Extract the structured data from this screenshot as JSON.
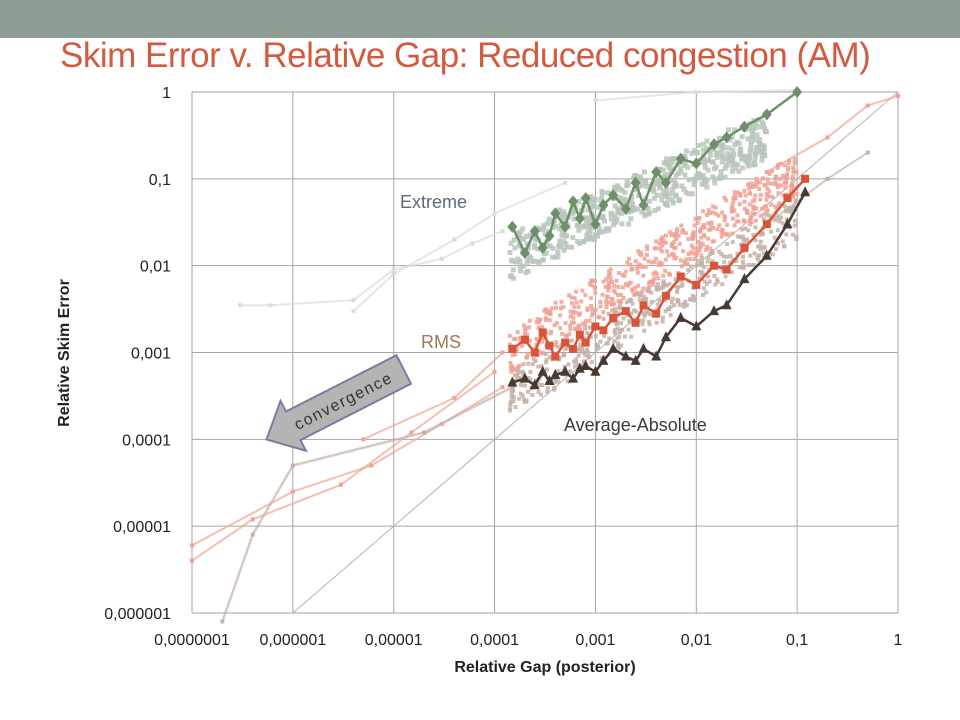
{
  "colors": {
    "top_band": "#8e9e95",
    "title": "#d35a3f",
    "grid": "#a6a6a6",
    "extreme_main": "#6f8f6a",
    "extreme_cloud": "#b9c6bb",
    "extreme_bg": "#dcdcdc",
    "rms_main": "#d9553a",
    "rms_cloud": "#f0a295",
    "avg_main": "#473a33",
    "avg_cloud": "#c4b2a8",
    "extreme_label": "#5b6b78",
    "rms_label": "#9b7a52",
    "avg_label": "#3b3b3b",
    "arrow_fill": "#b4b4b4",
    "arrow_stroke": "#7b7ba3"
  },
  "slide": {
    "title": "Skim Error v. Relative Gap: Reduced congestion (AM)"
  },
  "chart_data": {
    "type": "scatter",
    "title": "",
    "xlabel": "Relative Gap (posterior)",
    "ylabel": "Relative Skim Error",
    "x_scale": "log",
    "y_scale": "log",
    "xlim": [
      1e-07,
      1
    ],
    "ylim": [
      1e-06,
      1
    ],
    "x_ticks": [
      "0,0000001",
      "0,000001",
      "0,00001",
      "0,0001",
      "0,001",
      "0,01",
      "0,1",
      "1"
    ],
    "y_ticks": [
      "0,000001",
      "0,00001",
      "0,0001",
      "0,001",
      "0,01",
      "0,1",
      "1"
    ],
    "grid": true,
    "legend": "none",
    "reference_line": "y = x",
    "series": [
      {
        "name": "Extreme",
        "x": [
          0.00015,
          0.0002,
          0.00025,
          0.0003,
          0.00035,
          0.0004,
          0.0005,
          0.0006,
          0.0007,
          0.0008,
          0.001,
          0.0012,
          0.0015,
          0.002,
          0.0025,
          0.003,
          0.004,
          0.005,
          0.007,
          0.01,
          0.015,
          0.02,
          0.03,
          0.05,
          0.1
        ],
        "y": [
          0.028,
          0.014,
          0.025,
          0.016,
          0.022,
          0.04,
          0.028,
          0.055,
          0.035,
          0.06,
          0.03,
          0.05,
          0.065,
          0.045,
          0.09,
          0.05,
          0.12,
          0.09,
          0.17,
          0.15,
          0.25,
          0.3,
          0.4,
          0.55,
          1.0
        ]
      },
      {
        "name": "RMS",
        "x": [
          0.00015,
          0.0002,
          0.00025,
          0.0003,
          0.00035,
          0.0004,
          0.0005,
          0.0006,
          0.0007,
          0.0008,
          0.001,
          0.0012,
          0.0015,
          0.002,
          0.0025,
          0.003,
          0.004,
          0.005,
          0.007,
          0.01,
          0.015,
          0.02,
          0.03,
          0.05,
          0.08,
          0.12
        ],
        "y": [
          0.0011,
          0.0014,
          0.001,
          0.0017,
          0.0012,
          0.0009,
          0.0013,
          0.0011,
          0.0016,
          0.0013,
          0.002,
          0.0018,
          0.0025,
          0.003,
          0.0022,
          0.0035,
          0.0028,
          0.0045,
          0.0075,
          0.006,
          0.01,
          0.009,
          0.016,
          0.03,
          0.06,
          0.1
        ]
      },
      {
        "name": "Average-Absolute",
        "x": [
          0.00015,
          0.0002,
          0.00025,
          0.0003,
          0.00035,
          0.0004,
          0.0005,
          0.0006,
          0.0007,
          0.0008,
          0.001,
          0.0012,
          0.0015,
          0.002,
          0.0025,
          0.003,
          0.004,
          0.005,
          0.007,
          0.01,
          0.015,
          0.02,
          0.03,
          0.05,
          0.08,
          0.12
        ],
        "y": [
          0.00045,
          0.0005,
          0.00042,
          0.0006,
          0.00047,
          0.00055,
          0.0006,
          0.0005,
          0.00065,
          0.0007,
          0.0006,
          0.0008,
          0.0011,
          0.0009,
          0.0008,
          0.0011,
          0.0009,
          0.0015,
          0.0025,
          0.002,
          0.003,
          0.0035,
          0.007,
          0.013,
          0.03,
          0.07
        ]
      }
    ],
    "annotations": {
      "extreme": "Extreme",
      "rms": "RMS",
      "average": "Average-Absolute",
      "arrow": "convergence"
    }
  }
}
